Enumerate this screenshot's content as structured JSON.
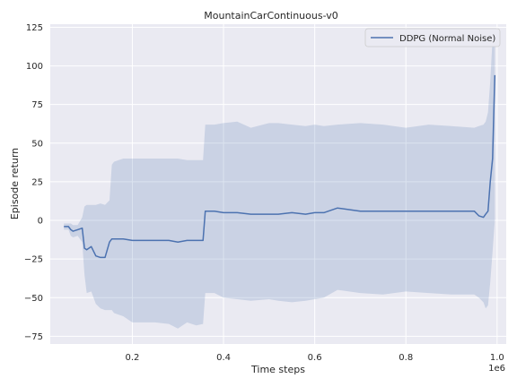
{
  "chart_data": {
    "type": "line",
    "title": "MountainCarContinuous-v0",
    "xlabel": "Time steps",
    "ylabel": "Episode return",
    "x_offset_label": "1e6",
    "xlim": [
      0.02,
      1.02
    ],
    "ylim": [
      -80,
      127
    ],
    "xticks": [
      0.2,
      0.4,
      0.6,
      0.8,
      1.0
    ],
    "xtick_labels": [
      "0.2",
      "0.4",
      "0.6",
      "0.8",
      "1.0"
    ],
    "yticks": [
      -75,
      -50,
      -25,
      0,
      25,
      50,
      75,
      100,
      125
    ],
    "ytick_labels": [
      "−75",
      "−50",
      "−25",
      "0",
      "25",
      "50",
      "75",
      "100",
      "125"
    ],
    "grid": true,
    "legend_position": "top-right",
    "line_color": "#4c72b0",
    "band_color": "#4c72b0",
    "background_color": "#eaeaf2",
    "series": [
      {
        "name": "DDPG (Normal Noise)",
        "x": [
          0.05,
          0.06,
          0.065,
          0.07,
          0.08,
          0.09,
          0.095,
          0.1,
          0.11,
          0.12,
          0.13,
          0.14,
          0.15,
          0.155,
          0.16,
          0.17,
          0.18,
          0.2,
          0.22,
          0.25,
          0.28,
          0.3,
          0.32,
          0.34,
          0.355,
          0.36,
          0.38,
          0.4,
          0.43,
          0.46,
          0.5,
          0.52,
          0.55,
          0.58,
          0.6,
          0.62,
          0.65,
          0.7,
          0.75,
          0.8,
          0.85,
          0.9,
          0.95,
          0.96,
          0.97,
          0.975,
          0.98,
          0.985,
          0.99,
          0.995
        ],
        "y": [
          -4,
          -4,
          -6,
          -7,
          -6,
          -5,
          -18,
          -19,
          -17,
          -23,
          -24,
          -24,
          -14,
          -12,
          -12,
          -12,
          -12,
          -13,
          -13,
          -13,
          -13,
          -14,
          -13,
          -13,
          -13,
          6,
          6,
          5,
          5,
          4,
          4,
          4,
          5,
          4,
          5,
          5,
          8,
          6,
          6,
          6,
          6,
          6,
          6,
          3,
          2,
          4,
          6,
          25,
          40,
          94
        ],
        "upper": [
          -2,
          -2,
          -2,
          -3,
          -3,
          2,
          9,
          10,
          10,
          10,
          11,
          10,
          13,
          36,
          38,
          39,
          40,
          40,
          40,
          40,
          40,
          40,
          39,
          39,
          39,
          62,
          62,
          63,
          64,
          60,
          63,
          63,
          62,
          61,
          62,
          61,
          62,
          63,
          62,
          60,
          62,
          61,
          60,
          61,
          62,
          64,
          70,
          90,
          118,
          115
        ],
        "lower": [
          -6,
          -6,
          -10,
          -11,
          -10,
          -14,
          -35,
          -47,
          -46,
          -54,
          -57,
          -58,
          -58,
          -58,
          -60,
          -61,
          -62,
          -66,
          -66,
          -66,
          -67,
          -70,
          -66,
          -68,
          -67,
          -47,
          -47,
          -50,
          -51,
          -52,
          -51,
          -52,
          -53,
          -52,
          -51,
          -50,
          -45,
          -47,
          -48,
          -46,
          -47,
          -48,
          -48,
          -50,
          -53,
          -57,
          -55,
          -40,
          -20,
          0
        ]
      }
    ]
  }
}
